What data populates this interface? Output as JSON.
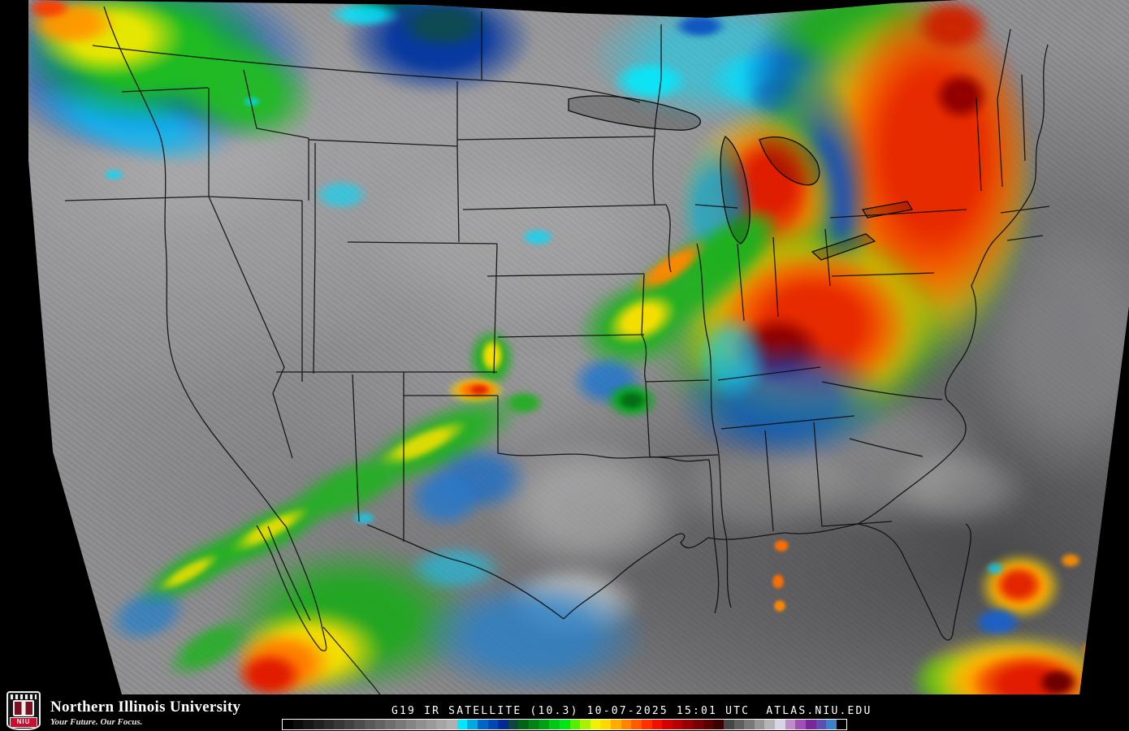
{
  "branding": {
    "university": "Northern Illinois University",
    "tagline": "Your Future. Our Focus.",
    "logo_text": "NIU",
    "logo_red": "#c8102e"
  },
  "caption": {
    "full": "G19 IR SATELLITE (10.3) 10-07-2025 15:01 UTC  ATLAS.NIU.EDU",
    "satellite": "G19",
    "product": "IR SATELLITE",
    "band": "(10.3)",
    "date": "10-07-2025",
    "time": "15:01 UTC",
    "site": "ATLAS.NIU.EDU"
  },
  "colorbar": {
    "description": "IR brightness temperature enhancement scale",
    "colors": [
      "#000000",
      "#0b0b0b",
      "#161616",
      "#212121",
      "#2c2c2c",
      "#373737",
      "#424242",
      "#4d4d4d",
      "#585858",
      "#636363",
      "#6e6e6e",
      "#797979",
      "#848484",
      "#8f8f8f",
      "#9a9a9a",
      "#a5a5a5",
      "#b0b0b0",
      "#00e8ff",
      "#00aadc",
      "#0064c8",
      "#0046b4",
      "#002896",
      "#0e4444",
      "#006414",
      "#008214",
      "#00a014",
      "#00c814",
      "#00e614",
      "#55f000",
      "#aaf000",
      "#f0f000",
      "#ffd800",
      "#ffae00",
      "#ff8400",
      "#ff5a00",
      "#ff3000",
      "#f01000",
      "#d20000",
      "#b40000",
      "#960000",
      "#780000",
      "#5a0000",
      "#3c0000",
      "#464646",
      "#5f5f5f",
      "#787878",
      "#969696",
      "#b4b4b4",
      "#d8d2e6",
      "#c08cc8",
      "#a050b4",
      "#782896",
      "#5a50b4",
      "#3c82c8",
      "#000000"
    ]
  },
  "clouds": [
    [
      725,
      625,
      125,
      85,
      0,
      10,
      "rgba(235,235,235,0.35)"
    ],
    [
      705,
      742,
      85,
      48,
      0,
      8,
      "rgba(245,245,245,0.55)"
    ],
    [
      1080,
      565,
      150,
      90,
      0,
      12,
      "rgba(215,215,215,0.28)"
    ],
    [
      1320,
      430,
      130,
      170,
      0,
      14,
      "rgba(205,205,208,0.25)"
    ],
    [
      640,
      300,
      200,
      120,
      0,
      14,
      "rgba(200,200,202,0.22)"
    ],
    [
      240,
      170,
      160,
      120,
      0,
      14,
      "rgba(190,190,192,0.25)"
    ],
    [
      940,
      600,
      120,
      60,
      0,
      10,
      "rgba(200,200,200,0.25)"
    ],
    [
      1180,
      600,
      90,
      50,
      0,
      10,
      "rgba(210,210,210,0.3)"
    ],
    [
      185,
      78,
      205,
      118,
      0,
      7,
      "rgba(0,85,204,0.95)"
    ],
    [
      160,
      150,
      125,
      45,
      15,
      5,
      "rgba(0,200,255,0.65)"
    ],
    [
      180,
      62,
      158,
      92,
      0,
      5,
      "rgba(30,190,30,0.97)"
    ],
    [
      295,
      108,
      98,
      66,
      20,
      5,
      "rgba(34,187,34,0.95)"
    ],
    [
      135,
      45,
      95,
      52,
      0,
      4,
      "rgba(240,232,0,0.95)"
    ],
    [
      88,
      28,
      58,
      30,
      0,
      4,
      "rgba(255,150,0,0.95)"
    ],
    [
      60,
      10,
      28,
      14,
      0,
      3,
      "rgba(255,60,0,0.9)"
    ],
    [
      480,
      8,
      55,
      16,
      0,
      3,
      "rgba(10,122,42,0.9)"
    ],
    [
      540,
      48,
      118,
      70,
      0,
      5,
      "rgba(0,52,160,0.95)"
    ],
    [
      546,
      30,
      60,
      31,
      0,
      4,
      "rgba(14,74,82,0.98)"
    ],
    [
      448,
      18,
      46,
      16,
      0,
      3,
      "rgba(0,230,255,0.8)"
    ],
    [
      885,
      72,
      162,
      82,
      0,
      5,
      "rgba(0,220,255,0.5)"
    ],
    [
      800,
      100,
      48,
      26,
      0,
      3,
      "rgba(0,235,255,0.85)"
    ],
    [
      935,
      98,
      66,
      40,
      0,
      3,
      "rgba(0,225,255,0.7)"
    ],
    [
      862,
      32,
      34,
      16,
      0,
      3,
      "rgba(0,64,192,0.8)"
    ],
    [
      962,
      118,
      42,
      26,
      0,
      3,
      "rgba(32,96,208,0.6)"
    ],
    [
      420,
      240,
      35,
      20,
      0,
      3,
      "rgba(0,220,255,0.6)"
    ],
    [
      662,
      292,
      22,
      12,
      0,
      2,
      "rgba(0,220,255,0.7)"
    ],
    [
      140,
      215,
      14,
      8,
      0,
      2,
      "rgba(0,220,255,0.7)"
    ],
    [
      310,
      125,
      12,
      7,
      0,
      2,
      "rgba(0,220,255,0.7)"
    ],
    [
      448,
      638,
      16,
      9,
      0,
      2,
      "rgba(0,220,255,0.6)"
    ],
    [
      1005,
      95,
      95,
      78,
      0,
      6,
      "rgba(0,80,208,0.85)"
    ],
    [
      1055,
      35,
      122,
      56,
      0,
      5,
      "rgba(31,170,31,0.95)"
    ],
    [
      1085,
      240,
      188,
      252,
      0,
      9,
      "rgba(47,174,34,0.9)"
    ],
    [
      1110,
      228,
      162,
      228,
      0,
      8,
      "rgba(255,216,0,0.95)"
    ],
    [
      1130,
      208,
      142,
      212,
      0,
      7,
      "rgba(255,140,0,0.96)"
    ],
    [
      1150,
      188,
      120,
      196,
      0,
      7,
      "rgba(230,38,0,0.96)"
    ],
    [
      1183,
      118,
      35,
      31,
      0,
      3,
      "rgba(143,0,0,0.97)"
    ],
    [
      1172,
      32,
      48,
      34,
      0,
      4,
      "rgba(204,34,0,0.95)"
    ],
    [
      1012,
      258,
      62,
      168,
      0,
      6,
      "rgba(0,70,200,0.85)"
    ],
    [
      968,
      275,
      58,
      158,
      0,
      6,
      "rgba(30,170,30,0.8)"
    ],
    [
      935,
      252,
      100,
      118,
      0,
      6,
      "rgba(255,216,0,0.9)"
    ],
    [
      942,
      242,
      80,
      97,
      0,
      5,
      "rgba(242,84,0,0.95)"
    ],
    [
      948,
      227,
      52,
      62,
      0,
      4,
      "rgba(221,26,0,0.95)"
    ],
    [
      882,
      257,
      48,
      86,
      0,
      5,
      "rgba(0,160,230,0.75)"
    ],
    [
      982,
      410,
      188,
      142,
      0,
      8,
      "rgba(40,180,20,0.92)"
    ],
    [
      992,
      406,
      162,
      122,
      0,
      7,
      "rgba(255,216,0,0.95)"
    ],
    [
      998,
      402,
      142,
      106,
      0,
      6,
      "rgba(255,140,0,0.96)"
    ],
    [
      1002,
      400,
      116,
      90,
      0,
      6,
      "rgba(230,38,0,0.96)"
    ],
    [
      958,
      430,
      56,
      43,
      0,
      4,
      "rgba(143,0,0,0.97)"
    ],
    [
      965,
      494,
      132,
      76,
      0,
      7,
      "rgba(0,80,210,0.7)"
    ],
    [
      902,
      440,
      46,
      56,
      0,
      4,
      "rgba(0,200,255,0.6)"
    ],
    [
      852,
      344,
      126,
      48,
      -35,
      5,
      "rgba(34,176,34,0.95)"
    ],
    [
      824,
      331,
      58,
      17,
      -35,
      3,
      "rgba(255,136,0,0.95)"
    ],
    [
      905,
      303,
      66,
      33,
      -40,
      4,
      "rgba(30,176,30,0.9)"
    ],
    [
      782,
      401,
      76,
      56,
      -20,
      5,
      "rgba(34,176,34,0.95)"
    ],
    [
      790,
      393,
      46,
      28,
      -25,
      3,
      "rgba(255,224,0,0.95)"
    ],
    [
      748,
      469,
      46,
      33,
      0,
      4,
      "rgba(0,110,220,0.65)"
    ],
    [
      605,
      441,
      31,
      39,
      0,
      3,
      "rgba(31,174,31,0.95)"
    ],
    [
      606,
      438,
      15,
      22,
      0,
      2,
      "rgba(255,224,0,0.95)"
    ],
    [
      586,
      481,
      37,
      18,
      0,
      3,
      "rgba(255,216,0,0.95)"
    ],
    [
      587,
      480,
      28,
      13,
      0,
      2,
      "rgba(255,106,0,0.96)"
    ],
    [
      590,
      480,
      13,
      7,
      0,
      2,
      "rgba(224,34,0,0.95)"
    ],
    [
      645,
      496,
      26,
      16,
      0,
      3,
      "rgba(31,174,31,0.9)"
    ],
    [
      778,
      493,
      34,
      23,
      0,
      3,
      "rgba(0,168,24,0.95)"
    ],
    [
      778,
      493,
      18,
      12,
      0,
      2,
      "rgba(6,106,22,0.95)"
    ],
    [
      540,
      543,
      116,
      39,
      -25,
      5,
      "rgba(34,176,34,0.92)"
    ],
    [
      520,
      547,
      62,
      16,
      -25,
      3,
      "rgba(238,224,0,0.9)"
    ],
    [
      590,
      589,
      62,
      43,
      0,
      5,
      "rgba(0,104,216,0.6)"
    ],
    [
      548,
      613,
      48,
      39,
      0,
      4,
      "rgba(40,120,200,0.85)"
    ],
    [
      430,
      601,
      86,
      33,
      -22,
      5,
      "rgba(34,176,34,0.9)"
    ],
    [
      330,
      656,
      106,
      30,
      -28,
      5,
      "rgba(34,176,34,0.92)"
    ],
    [
      330,
      653,
      58,
      13,
      -28,
      3,
      "rgba(238,224,0,0.9)"
    ],
    [
      240,
      701,
      86,
      28,
      -30,
      5,
      "rgba(34,176,34,0.9)"
    ],
    [
      232,
      705,
      44,
      11,
      -30,
      3,
      "rgba(238,224,0,0.85)"
    ],
    [
      182,
      757,
      52,
      33,
      -20,
      4,
      "rgba(0,120,220,0.55)"
    ],
    [
      430,
      763,
      156,
      93,
      0,
      8,
      "rgba(31,168,31,0.95)"
    ],
    [
      560,
      700,
      60,
      30,
      0,
      5,
      "rgba(0,210,255,0.5)"
    ],
    [
      655,
      783,
      146,
      73,
      0,
      7,
      "rgba(40,128,200,0.8)"
    ],
    [
      382,
      801,
      92,
      53,
      0,
      6,
      "rgba(255,224,0,0.95)"
    ],
    [
      348,
      817,
      62,
      41,
      0,
      5,
      "rgba(255,120,0,0.96)"
    ],
    [
      332,
      831,
      42,
      29,
      0,
      4,
      "rgba(224,24,0,0.96)"
    ],
    [
      258,
      797,
      62,
      27,
      -30,
      4,
      "rgba(34,176,34,0.85)"
    ],
    [
      962,
      672,
      11,
      9,
      0,
      1,
      "rgba(255,112,0,0.95)"
    ],
    [
      958,
      716,
      9,
      11,
      0,
      1,
      "rgba(255,112,0,0.95)"
    ],
    [
      960,
      746,
      9,
      9,
      0,
      1,
      "rgba(255,136,0,0.95)"
    ],
    [
      1256,
      722,
      53,
      43,
      0,
      4,
      "rgba(255,216,0,0.95)"
    ],
    [
      1256,
      722,
      42,
      34,
      0,
      3,
      "rgba(255,136,0,0.96)"
    ],
    [
      1254,
      720,
      30,
      24,
      0,
      3,
      "rgba(224,34,0,0.96)"
    ],
    [
      1228,
      766,
      31,
      20,
      0,
      3,
      "rgba(24,96,208,0.9)"
    ],
    [
      1168,
      838,
      48,
      37,
      0,
      5,
      "rgba(30,170,30,0.85)"
    ],
    [
      1248,
      836,
      126,
      58,
      0,
      6,
      "rgba(255,232,0,0.95)"
    ],
    [
      1258,
      840,
      98,
      48,
      0,
      5,
      "rgba(255,128,0,0.96)"
    ],
    [
      1268,
      842,
      72,
      38,
      0,
      4,
      "rgba(224,24,0,0.96)"
    ],
    [
      1302,
      840,
      26,
      18,
      0,
      3,
      "rgba(106,0,0,0.97)"
    ],
    [
      1346,
      800,
      16,
      13,
      0,
      2,
      "rgba(255,128,0,0.95)"
    ],
    [
      1372,
      756,
      13,
      11,
      0,
      2,
      "rgba(255,144,0,0.95)"
    ],
    [
      1318,
      690,
      14,
      10,
      0,
      2,
      "rgba(255,144,0,0.9)"
    ],
    [
      1225,
      700,
      12,
      9,
      0,
      2,
      "rgba(0,200,255,0.7)"
    ]
  ]
}
